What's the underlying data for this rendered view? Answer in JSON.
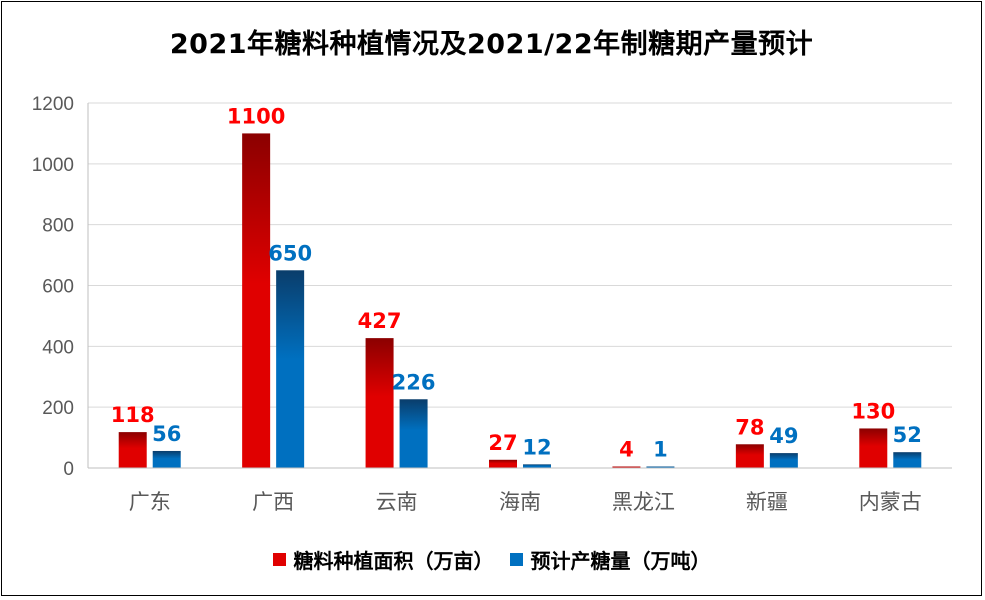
{
  "chart_data": {
    "type": "bar",
    "title": "2021年糖料种植情况及2021/22年制糖期产量预计",
    "categories": [
      "广东",
      "广西",
      "云南",
      "海南",
      "黑龙江",
      "新疆",
      "内蒙古"
    ],
    "series": [
      {
        "name": "糖料种植面积（万亩）",
        "values": [
          118,
          1100,
          427,
          27,
          4,
          78,
          130
        ],
        "color": "#e00000",
        "label_color": "#ff0000"
      },
      {
        "name": "预计产糖量（万吨）",
        "values": [
          56,
          650,
          226,
          12,
          1,
          49,
          52
        ],
        "color": "#0070c0",
        "label_color": "#0070c0"
      }
    ],
    "y_ticks": [
      0,
      200,
      400,
      600,
      800,
      1000,
      1200
    ],
    "ylim": [
      0,
      1200
    ],
    "grid": true,
    "legend_position": "bottom"
  }
}
